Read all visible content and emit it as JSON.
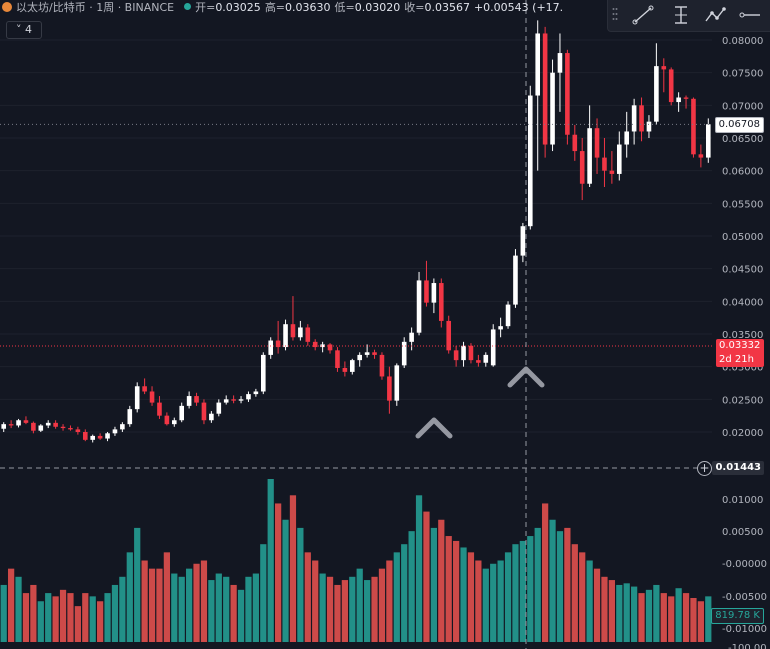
{
  "header": {
    "symbol": "以太坊/比特币 · 1周 · BINANCE",
    "open_label": "开=",
    "open": "0.03025",
    "high_label": "高=",
    "high": "0.03630",
    "low_label": "低=",
    "low": "0.03020",
    "close_label": "收=",
    "close": "0.03567",
    "change": "+0.00543 (+17."
  },
  "collapse_label": "˅ 4",
  "tools": [
    "trend-line-icon",
    "info-line-icon",
    "path-icon",
    "horizontal-ray-icon"
  ],
  "price_tags": {
    "last": "0.06708",
    "crosshair_price": "0.03332",
    "crosshair_countdown": "2d 21h",
    "line": "0.01443",
    "volume": "819.78 K",
    "bottom": "-100.00"
  },
  "colors": {
    "background": "#131722",
    "up": "#ffffff",
    "down": "#f23645",
    "vol_up": "#26a69a",
    "vol_down": "#ef5350",
    "grid": "#1e222d",
    "crosshair": "#9598a1"
  },
  "markers": [
    "chevron-up-icon",
    "chevron-up-icon"
  ],
  "chart_data": {
    "type": "candlestick",
    "price_axis": [
      "0.08000",
      "0.07500",
      "0.07000",
      "0.06500",
      "0.06000",
      "0.05500",
      "0.05000",
      "0.04500",
      "0.04000",
      "0.03500",
      "0.03000",
      "0.02500",
      "0.02000"
    ],
    "volume_axis": [
      "0.01000",
      "0.00500",
      "-0.00000",
      "-0.00500",
      "-0.01000"
    ],
    "ylim": [
      0.0135,
      0.0835
    ],
    "candles": [
      [
        0.0205,
        0.0215,
        0.02,
        0.0212
      ],
      [
        0.0212,
        0.0218,
        0.0206,
        0.021
      ],
      [
        0.021,
        0.022,
        0.0207,
        0.0218
      ],
      [
        0.0218,
        0.0224,
        0.0212,
        0.0214
      ],
      [
        0.0214,
        0.0216,
        0.0198,
        0.0202
      ],
      [
        0.0202,
        0.0212,
        0.02,
        0.021
      ],
      [
        0.021,
        0.0218,
        0.0206,
        0.0214
      ],
      [
        0.0214,
        0.0218,
        0.0205,
        0.0208
      ],
      [
        0.0208,
        0.0212,
        0.0202,
        0.0206
      ],
      [
        0.0206,
        0.021,
        0.0202,
        0.0204
      ],
      [
        0.0204,
        0.0208,
        0.0196,
        0.02
      ],
      [
        0.02,
        0.0204,
        0.0186,
        0.0188
      ],
      [
        0.0188,
        0.0196,
        0.0184,
        0.0194
      ],
      [
        0.0194,
        0.0198,
        0.0188,
        0.019
      ],
      [
        0.019,
        0.02,
        0.0186,
        0.0198
      ],
      [
        0.0198,
        0.0208,
        0.0194,
        0.0204
      ],
      [
        0.0204,
        0.0215,
        0.02,
        0.0212
      ],
      [
        0.0212,
        0.024,
        0.0208,
        0.0235
      ],
      [
        0.0235,
        0.0276,
        0.023,
        0.027
      ],
      [
        0.027,
        0.0282,
        0.0258,
        0.0262
      ],
      [
        0.0262,
        0.027,
        0.024,
        0.0245
      ],
      [
        0.0245,
        0.0255,
        0.022,
        0.0225
      ],
      [
        0.0225,
        0.023,
        0.021,
        0.0212
      ],
      [
        0.0212,
        0.0222,
        0.0208,
        0.0218
      ],
      [
        0.0218,
        0.0245,
        0.0215,
        0.024
      ],
      [
        0.024,
        0.0262,
        0.0236,
        0.0255
      ],
      [
        0.0255,
        0.026,
        0.024,
        0.0245
      ],
      [
        0.0245,
        0.025,
        0.0212,
        0.0218
      ],
      [
        0.0218,
        0.0232,
        0.0214,
        0.0228
      ],
      [
        0.0228,
        0.025,
        0.0224,
        0.0245
      ],
      [
        0.0245,
        0.0256,
        0.0242,
        0.025
      ],
      [
        0.025,
        0.0256,
        0.0244,
        0.0248
      ],
      [
        0.0248,
        0.0255,
        0.0244,
        0.025
      ],
      [
        0.025,
        0.0262,
        0.0246,
        0.0258
      ],
      [
        0.0258,
        0.0266,
        0.0254,
        0.0262
      ],
      [
        0.0262,
        0.0322,
        0.0258,
        0.0318
      ],
      [
        0.0318,
        0.0345,
        0.0312,
        0.034
      ],
      [
        0.034,
        0.037,
        0.032,
        0.033
      ],
      [
        0.033,
        0.0372,
        0.0325,
        0.0365
      ],
      [
        0.0365,
        0.0408,
        0.034,
        0.0345
      ],
      [
        0.0345,
        0.037,
        0.034,
        0.036
      ],
      [
        0.036,
        0.0365,
        0.0332,
        0.0338
      ],
      [
        0.0338,
        0.0342,
        0.0325,
        0.033
      ],
      [
        0.033,
        0.0338,
        0.0322,
        0.0334
      ],
      [
        0.0334,
        0.0336,
        0.032,
        0.0325
      ],
      [
        0.0325,
        0.033,
        0.0292,
        0.0298
      ],
      [
        0.0298,
        0.0308,
        0.0285,
        0.0292
      ],
      [
        0.0292,
        0.0312,
        0.0288,
        0.031
      ],
      [
        0.031,
        0.0322,
        0.03,
        0.0318
      ],
      [
        0.0318,
        0.0334,
        0.0314,
        0.0322
      ],
      [
        0.0322,
        0.0326,
        0.0312,
        0.0318
      ],
      [
        0.0318,
        0.0322,
        0.028,
        0.0285
      ],
      [
        0.0285,
        0.03,
        0.0228,
        0.0248
      ],
      [
        0.0248,
        0.0305,
        0.024,
        0.0302
      ],
      [
        0.0302,
        0.0345,
        0.0298,
        0.0338
      ],
      [
        0.0338,
        0.036,
        0.0325,
        0.0352
      ],
      [
        0.0352,
        0.0445,
        0.0348,
        0.0432
      ],
      [
        0.0432,
        0.0462,
        0.0392,
        0.0398
      ],
      [
        0.0398,
        0.0435,
        0.0382,
        0.0428
      ],
      [
        0.0428,
        0.0435,
        0.036,
        0.037
      ],
      [
        0.037,
        0.0378,
        0.032,
        0.0325
      ],
      [
        0.0325,
        0.0332,
        0.03,
        0.031
      ],
      [
        0.031,
        0.0338,
        0.03,
        0.0332
      ],
      [
        0.0332,
        0.0336,
        0.0305,
        0.031
      ],
      [
        0.031,
        0.0318,
        0.03,
        0.0306
      ],
      [
        0.0306,
        0.0322,
        0.03,
        0.0318
      ],
      [
        0.0302,
        0.0365,
        0.03,
        0.0357
      ],
      [
        0.0357,
        0.0375,
        0.0345,
        0.0362
      ],
      [
        0.0362,
        0.04,
        0.0358,
        0.0395
      ],
      [
        0.0395,
        0.048,
        0.039,
        0.047
      ],
      [
        0.047,
        0.052,
        0.046,
        0.0515
      ],
      [
        0.0515,
        0.073,
        0.051,
        0.0715
      ],
      [
        0.0715,
        0.083,
        0.06,
        0.081
      ],
      [
        0.081,
        0.082,
        0.062,
        0.064
      ],
      [
        0.064,
        0.077,
        0.063,
        0.075
      ],
      [
        0.075,
        0.081,
        0.069,
        0.078
      ],
      [
        0.078,
        0.0785,
        0.064,
        0.0655
      ],
      [
        0.0655,
        0.067,
        0.0615,
        0.063
      ],
      [
        0.063,
        0.065,
        0.0555,
        0.058
      ],
      [
        0.058,
        0.07,
        0.0575,
        0.0665
      ],
      [
        0.0665,
        0.068,
        0.0595,
        0.062
      ],
      [
        0.062,
        0.065,
        0.0575,
        0.06
      ],
      [
        0.06,
        0.063,
        0.058,
        0.0595
      ],
      [
        0.0595,
        0.066,
        0.0585,
        0.064
      ],
      [
        0.064,
        0.069,
        0.062,
        0.066
      ],
      [
        0.066,
        0.071,
        0.064,
        0.07
      ],
      [
        0.07,
        0.0712,
        0.0645,
        0.066
      ],
      [
        0.066,
        0.0685,
        0.065,
        0.0675
      ],
      [
        0.0675,
        0.0795,
        0.067,
        0.076
      ],
      [
        0.076,
        0.0772,
        0.072,
        0.0755
      ],
      [
        0.0755,
        0.0758,
        0.07,
        0.0705
      ],
      [
        0.0705,
        0.072,
        0.069,
        0.0712
      ],
      [
        0.0712,
        0.0715,
        0.0695,
        0.071
      ],
      [
        0.071,
        0.0712,
        0.062,
        0.0625
      ],
      [
        0.0625,
        0.064,
        0.0605,
        0.062
      ],
      [
        0.062,
        0.068,
        0.0612,
        0.0671
      ]
    ],
    "volumes": [
      0.35,
      0.45,
      0.4,
      0.3,
      0.35,
      0.25,
      0.3,
      0.28,
      0.32,
      0.3,
      0.22,
      0.3,
      0.28,
      0.25,
      0.3,
      0.35,
      0.4,
      0.55,
      0.7,
      0.5,
      0.45,
      0.45,
      0.55,
      0.42,
      0.4,
      0.45,
      0.48,
      0.5,
      0.38,
      0.42,
      0.4,
      0.35,
      0.32,
      0.4,
      0.42,
      0.6,
      1.0,
      0.85,
      0.75,
      0.9,
      0.7,
      0.55,
      0.5,
      0.42,
      0.4,
      0.35,
      0.38,
      0.4,
      0.45,
      0.38,
      0.4,
      0.45,
      0.5,
      0.55,
      0.6,
      0.68,
      0.9,
      0.8,
      0.7,
      0.75,
      0.65,
      0.62,
      0.58,
      0.55,
      0.5,
      0.45,
      0.48,
      0.5,
      0.55,
      0.6,
      0.62,
      0.65,
      0.7,
      0.85,
      0.75,
      0.68,
      0.7,
      0.6,
      0.55,
      0.5,
      0.45,
      0.4,
      0.38,
      0.35,
      0.36,
      0.34,
      0.3,
      0.32,
      0.35,
      0.3,
      0.28,
      0.33,
      0.3,
      0.27,
      0.25,
      0.28,
      0.3
    ]
  }
}
